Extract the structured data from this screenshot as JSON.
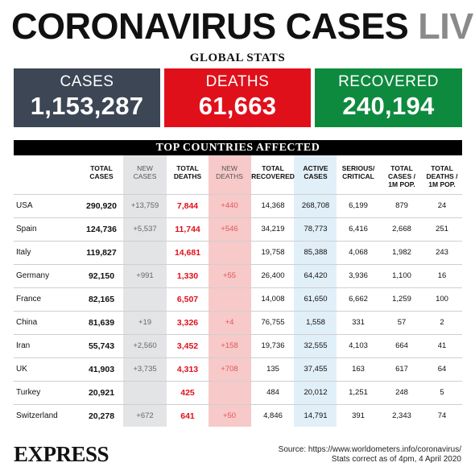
{
  "title": {
    "main": "CORONAVIRUS CASES",
    "live": "LIVE"
  },
  "global_stats_label": "GLOBAL STATS",
  "stats": {
    "cases": {
      "label": "CASES",
      "value": "1,153,287",
      "color": "#3d4654"
    },
    "deaths": {
      "label": "DEATHS",
      "value": "61,663",
      "color": "#e0101b"
    },
    "recovered": {
      "label": "RECOVERED",
      "value": "240,194",
      "color": "#0e8a3e"
    }
  },
  "table": {
    "heading": "TOP COUNTRIES AFFECTED",
    "columns": [
      "TOTAL\nCASES",
      "NEW\nCASES",
      "TOTAL\nDEATHS",
      "NEW\nDEATHS",
      "TOTAL\nRECOVERED",
      "ACTIVE\nCASES",
      "SERIOUS/\nCRITICAL",
      "TOTAL\nCASES /\n1M POP.",
      "TOTAL\nDEATHS /\n1M POP."
    ],
    "rows": [
      {
        "country": "USA",
        "total_cases": "290,920",
        "new_cases": "+13,759",
        "total_deaths": "7,844",
        "new_deaths": "+440",
        "total_recovered": "14,368",
        "active_cases": "268,708",
        "serious_critical": "6,199",
        "cases_per_1m": "879",
        "deaths_per_1m": "24"
      },
      {
        "country": "Spain",
        "total_cases": "124,736",
        "new_cases": "+5,537",
        "total_deaths": "11,744",
        "new_deaths": "+546",
        "total_recovered": "34,219",
        "active_cases": "78,773",
        "serious_critical": "6,416",
        "cases_per_1m": "2,668",
        "deaths_per_1m": "251"
      },
      {
        "country": "Italy",
        "total_cases": "119,827",
        "new_cases": "",
        "total_deaths": "14,681",
        "new_deaths": "",
        "total_recovered": "19,758",
        "active_cases": "85,388",
        "serious_critical": "4,068",
        "cases_per_1m": "1,982",
        "deaths_per_1m": "243"
      },
      {
        "country": "Germany",
        "total_cases": "92,150",
        "new_cases": "+991",
        "total_deaths": "1,330",
        "new_deaths": "+55",
        "total_recovered": "26,400",
        "active_cases": "64,420",
        "serious_critical": "3,936",
        "cases_per_1m": "1,100",
        "deaths_per_1m": "16"
      },
      {
        "country": "France",
        "total_cases": "82,165",
        "new_cases": "",
        "total_deaths": "6,507",
        "new_deaths": "",
        "total_recovered": "14,008",
        "active_cases": "61,650",
        "serious_critical": "6,662",
        "cases_per_1m": "1,259",
        "deaths_per_1m": "100"
      },
      {
        "country": "China",
        "total_cases": "81,639",
        "new_cases": "+19",
        "total_deaths": "3,326",
        "new_deaths": "+4",
        "total_recovered": "76,755",
        "active_cases": "1,558",
        "serious_critical": "331",
        "cases_per_1m": "57",
        "deaths_per_1m": "2"
      },
      {
        "country": "Iran",
        "total_cases": "55,743",
        "new_cases": "+2,560",
        "total_deaths": "3,452",
        "new_deaths": "+158",
        "total_recovered": "19,736",
        "active_cases": "32,555",
        "serious_critical": "4,103",
        "cases_per_1m": "664",
        "deaths_per_1m": "41"
      },
      {
        "country": "UK",
        "total_cases": "41,903",
        "new_cases": "+3,735",
        "total_deaths": "4,313",
        "new_deaths": "+708",
        "total_recovered": "135",
        "active_cases": "37,455",
        "serious_critical": "163",
        "cases_per_1m": "617",
        "deaths_per_1m": "64"
      },
      {
        "country": "Turkey",
        "total_cases": "20,921",
        "new_cases": "",
        "total_deaths": "425",
        "new_deaths": "",
        "total_recovered": "484",
        "active_cases": "20,012",
        "serious_critical": "1,251",
        "cases_per_1m": "248",
        "deaths_per_1m": "5"
      },
      {
        "country": "Switzerland",
        "total_cases": "20,278",
        "new_cases": "+672",
        "total_deaths": "641",
        "new_deaths": "+50",
        "total_recovered": "4,846",
        "active_cases": "14,791",
        "serious_critical": "391",
        "cases_per_1m": "2,343",
        "deaths_per_1m": "74"
      }
    ]
  },
  "footer": {
    "logo": "EXPRESS",
    "source": "Source: https://www.worldometers.info/coronavirus/",
    "stats_note": "Stats correct as of 4pm, 4 April 2020"
  }
}
